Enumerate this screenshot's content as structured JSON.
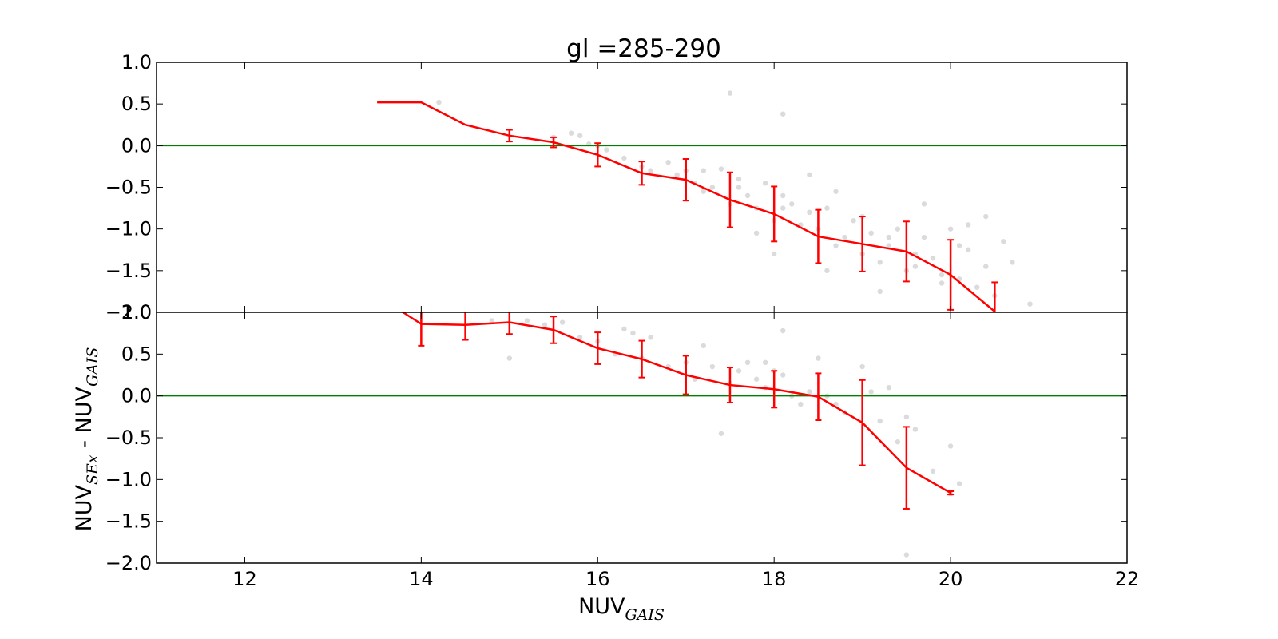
{
  "figure": {
    "title": "gl =285-290",
    "xlabel": "NUV",
    "xlabel_sub": "GAIS",
    "ylabel": "NUV",
    "ylabel_sub": "SEx",
    "ylabel_mid": " - NUV",
    "ylabel_sub2": "GAIS"
  },
  "colors": {
    "median_line": "#ff0000",
    "reference_line": "#008000",
    "points": "#bdbdbd",
    "axes": "#000000"
  },
  "chart_data": [
    {
      "type": "line",
      "panel": "top",
      "title": "gl =285-290",
      "xlim": [
        11,
        22
      ],
      "ylim": [
        -2.0,
        1.0
      ],
      "xticks": [
        12,
        14,
        16,
        18,
        20,
        22
      ],
      "yticks": [
        1.0,
        0.5,
        0.0,
        -0.5,
        -1.0,
        -1.5,
        -2.0
      ],
      "ytick_labels": [
        "1.0",
        "0.5",
        "0.0",
        "−0.5",
        "−1.0",
        "−1.5",
        "−2.0"
      ],
      "reference_line_y": 0.0,
      "grid": false,
      "median": {
        "x": [
          13.5,
          14.0,
          14.5,
          15.0,
          15.5,
          16.0,
          16.5,
          17.0,
          17.5,
          18.0,
          18.5,
          19.0,
          19.5,
          20.0,
          20.5
        ],
        "y": [
          0.52,
          0.52,
          0.25,
          0.12,
          0.04,
          -0.11,
          -0.33,
          -0.41,
          -0.65,
          -0.82,
          -1.09,
          -1.18,
          -1.27,
          -1.55,
          -1.99
        ],
        "err": [
          0,
          0,
          0,
          0.07,
          0.06,
          0.14,
          0.14,
          0.25,
          0.33,
          0.33,
          0.32,
          0.33,
          0.36,
          0.42,
          0.35
        ]
      },
      "scatter": {
        "x": [
          14.2,
          15.5,
          15.7,
          15.8,
          15.9,
          16.0,
          16.1,
          16.3,
          16.5,
          16.6,
          16.8,
          16.9,
          17.0,
          17.1,
          17.2,
          17.3,
          17.4,
          17.5,
          17.6,
          17.7,
          17.8,
          17.9,
          18.0,
          18.1,
          18.2,
          18.3,
          18.4,
          18.5,
          18.6,
          18.7,
          18.8,
          18.9,
          19.0,
          19.1,
          19.2,
          19.3,
          19.4,
          19.5,
          19.6,
          19.7,
          19.8,
          19.9,
          20.0,
          20.1,
          20.2,
          20.3,
          20.4,
          20.5,
          20.6,
          20.7,
          20.9,
          17.5,
          18.1,
          18.4,
          18.7,
          19.0,
          19.3,
          19.6,
          19.9,
          20.2,
          17.6,
          18.1,
          18.0,
          17.2,
          17.8,
          18.6,
          19.2,
          19.7,
          20.1,
          20.4
        ],
        "y": [
          0.52,
          0.1,
          0.15,
          0.12,
          0.02,
          0.0,
          -0.05,
          -0.15,
          -0.25,
          -0.3,
          -0.2,
          -0.35,
          -0.3,
          -0.45,
          -0.3,
          -0.5,
          -0.28,
          -0.7,
          -0.5,
          -0.6,
          -0.75,
          -0.45,
          -0.9,
          -0.6,
          -0.7,
          -0.95,
          -0.8,
          -1.0,
          -0.75,
          -1.2,
          -1.1,
          -0.9,
          -1.3,
          -1.05,
          -1.4,
          -1.2,
          -1.0,
          -1.5,
          -1.3,
          -1.1,
          -1.35,
          -1.55,
          -1.0,
          -1.6,
          -1.25,
          -1.7,
          -1.45,
          -1.8,
          -1.15,
          -1.4,
          -1.9,
          0.63,
          0.38,
          -0.35,
          -0.55,
          -0.85,
          -1.1,
          -1.45,
          -1.65,
          -0.95,
          -0.4,
          -0.75,
          -1.3,
          -0.55,
          -1.05,
          -1.5,
          -1.75,
          -0.7,
          -1.2,
          -0.85
        ]
      }
    },
    {
      "type": "line",
      "panel": "bottom",
      "xlim": [
        11,
        22
      ],
      "ylim": [
        -2.0,
        1.0
      ],
      "xticks": [
        12,
        14,
        16,
        18,
        20,
        22
      ],
      "xtick_labels": [
        "12",
        "14",
        "16",
        "18",
        "20",
        "22"
      ],
      "yticks": [
        1.0,
        0.5,
        0.0,
        -0.5,
        -1.0,
        -1.5,
        -2.0
      ],
      "ytick_labels": [
        "1.0",
        "0.5",
        "0.0",
        "−0.5",
        "−1.0",
        "−1.5",
        "−2.0"
      ],
      "xlabel": "NUV_GAIS",
      "ylabel": "NUV_SEx - NUV_GAIS",
      "reference_line_y": 0.0,
      "grid": false,
      "median": {
        "x": [
          13.5,
          14.0,
          14.5,
          15.0,
          15.5,
          16.0,
          16.5,
          17.0,
          17.5,
          18.0,
          18.5,
          19.0,
          19.5,
          20.0
        ],
        "y": [
          1.2,
          0.86,
          0.85,
          0.88,
          0.79,
          0.57,
          0.44,
          0.25,
          0.13,
          0.08,
          -0.01,
          -0.32,
          -0.86,
          -1.16
        ],
        "err": [
          0,
          0.26,
          0.18,
          0.14,
          0.16,
          0.19,
          0.22,
          0.23,
          0.21,
          0.22,
          0.28,
          0.51,
          0.49,
          0.02
        ]
      },
      "scatter": {
        "x": [
          14.8,
          15.0,
          15.2,
          15.4,
          15.6,
          15.8,
          16.0,
          16.2,
          16.3,
          16.5,
          16.6,
          16.8,
          17.0,
          17.1,
          17.2,
          17.3,
          17.5,
          17.6,
          17.7,
          17.8,
          17.9,
          18.0,
          18.1,
          18.2,
          18.3,
          18.4,
          18.5,
          18.6,
          18.7,
          18.8,
          19.0,
          19.1,
          19.2,
          19.3,
          19.4,
          19.5,
          19.6,
          19.8,
          20.0,
          20.1,
          17.4,
          18.1,
          19.5,
          20.0,
          16.4,
          17.9
        ],
        "y": [
          0.9,
          0.45,
          0.9,
          0.85,
          0.88,
          0.7,
          0.65,
          0.5,
          0.8,
          0.45,
          0.7,
          0.35,
          0.4,
          0.2,
          0.6,
          0.35,
          0.15,
          0.3,
          0.4,
          0.2,
          0.1,
          0.3,
          0.25,
          0.0,
          -0.1,
          0.05,
          0.45,
          0.0,
          -0.1,
          -0.2,
          0.35,
          0.05,
          -0.3,
          0.1,
          -0.55,
          -0.25,
          -0.4,
          -0.9,
          -0.6,
          -1.05,
          -0.45,
          0.78,
          -1.9,
          -1.17,
          0.75,
          0.4
        ]
      }
    }
  ]
}
